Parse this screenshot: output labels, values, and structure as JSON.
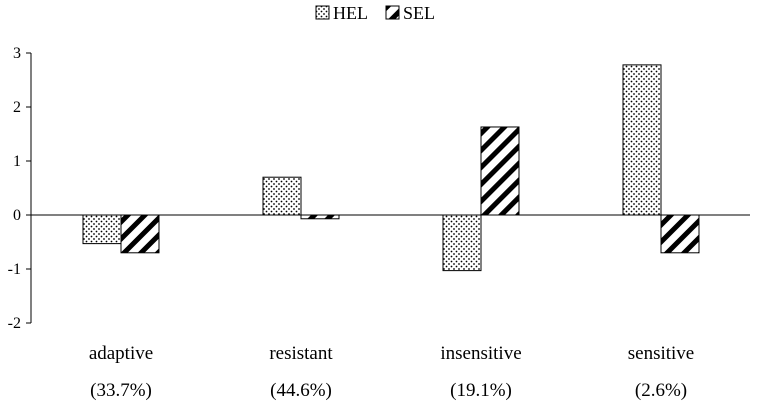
{
  "chart_data": {
    "type": "bar",
    "title": "",
    "xlabel": "",
    "ylabel": "",
    "categories": [
      "adaptive",
      "resistant",
      "insensitive",
      "sensitive"
    ],
    "category_shares": [
      "(33.7%)",
      "(44.6%)",
      "(19.1%)",
      "(2.6%)"
    ],
    "series": [
      {
        "name": "HEL",
        "pattern": "dotted",
        "values": [
          -0.53,
          0.7,
          -1.03,
          2.78
        ]
      },
      {
        "name": "SEL",
        "pattern": "diagonal-hatch",
        "values": [
          -0.7,
          -0.07,
          1.63,
          -0.7
        ]
      }
    ],
    "ylim": [
      -2,
      3
    ],
    "yticks": [
      "3",
      "2",
      "1",
      "0",
      "-1",
      "-2"
    ],
    "ytick_values": [
      3,
      2,
      1,
      0,
      -1,
      -2
    ],
    "legend_position": "top-center",
    "grid": false,
    "colors": {
      "bar_outline": "#000000",
      "background": "#ffffff"
    }
  }
}
